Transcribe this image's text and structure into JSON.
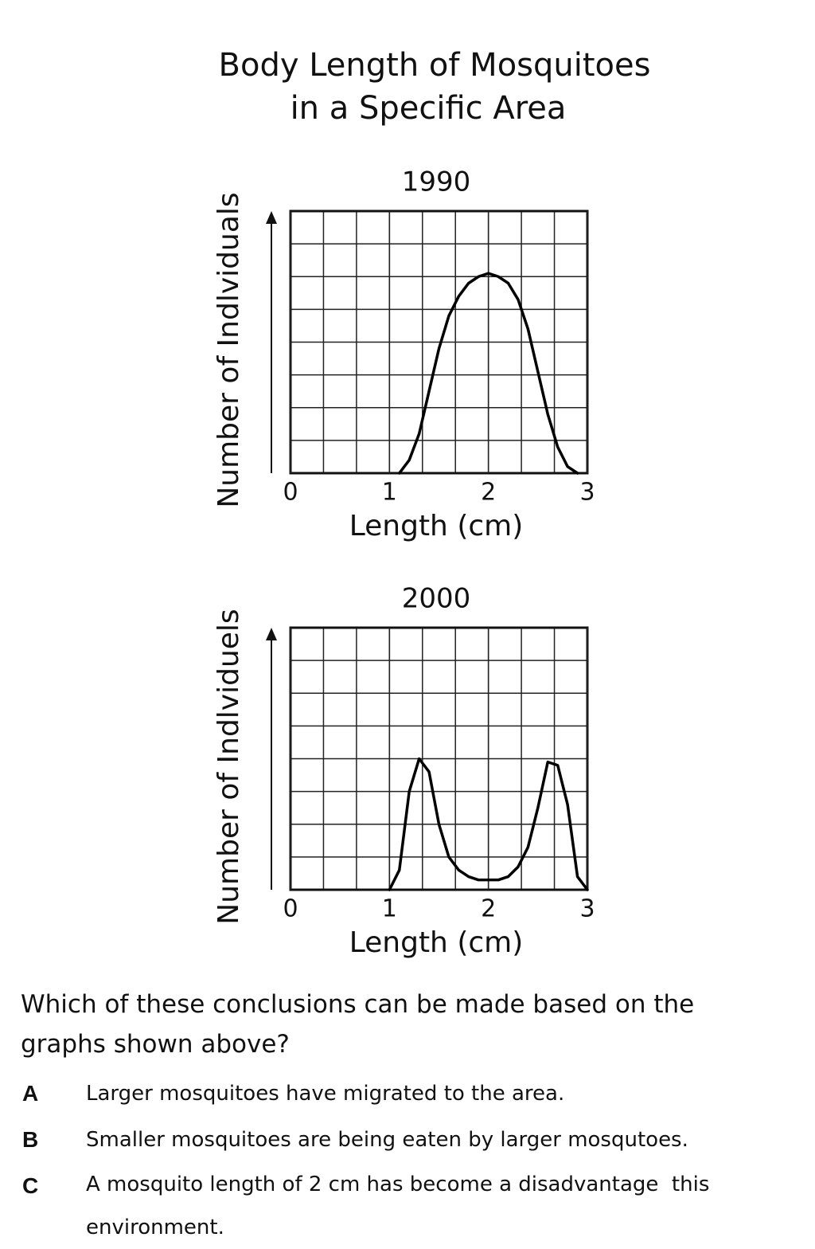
{
  "title_lines": [
    "Body Length of Mosquitoes",
    "in a Specific Area"
  ],
  "chart_data": [
    {
      "type": "line",
      "title": "1990",
      "x_label": "Length (cm)",
      "y_label": "Number of Indlviduals",
      "xlim": [
        0,
        3
      ],
      "xticks": [
        0,
        1,
        2,
        3
      ],
      "ylim": [
        0,
        8
      ],
      "grid": true,
      "series": [
        {
          "color": "#000000",
          "x": [
            1.1,
            1.2,
            1.3,
            1.4,
            1.5,
            1.6,
            1.7,
            1.8,
            1.9,
            2.0,
            2.1,
            2.2,
            2.3,
            2.4,
            2.5,
            2.6,
            2.7,
            2.8,
            2.9
          ],
          "values": [
            0,
            0.4,
            1.2,
            2.5,
            3.8,
            4.8,
            5.4,
            5.8,
            6.0,
            6.1,
            6.0,
            5.8,
            5.3,
            4.4,
            3.1,
            1.8,
            0.8,
            0.2,
            0
          ]
        }
      ]
    },
    {
      "type": "line",
      "title": "2000",
      "x_label": "Length (cm)",
      "y_label": "Number of Indlviduels",
      "xlim": [
        0,
        3
      ],
      "xticks": [
        0,
        1,
        2,
        3
      ],
      "ylim": [
        0,
        8
      ],
      "grid": true,
      "series": [
        {
          "color": "#000000",
          "x": [
            1.0,
            1.1,
            1.2,
            1.3,
            1.4,
            1.5,
            1.6,
            1.7,
            1.8,
            1.9,
            2.0,
            2.1,
            2.2,
            2.3,
            2.4,
            2.5,
            2.6,
            2.7,
            2.8,
            2.9,
            3.0
          ],
          "values": [
            0,
            0.6,
            3.0,
            4.0,
            3.6,
            2.0,
            1.0,
            0.6,
            0.4,
            0.3,
            0.3,
            0.3,
            0.4,
            0.7,
            1.3,
            2.5,
            3.9,
            3.8,
            2.6,
            0.4,
            0
          ]
        }
      ]
    }
  ],
  "question": "Which of these conclusions can be made based on the graphs shown above?",
  "options": [
    {
      "letter": "A",
      "text": "Larger mosquitoes have migrated to the area."
    },
    {
      "letter": "B",
      "text": "Smaller mosquitoes are being eaten by larger mosqutoes."
    },
    {
      "letter": "C",
      "text": "A mosquito length of 2 cm has become a disadvantage  this environment."
    }
  ]
}
